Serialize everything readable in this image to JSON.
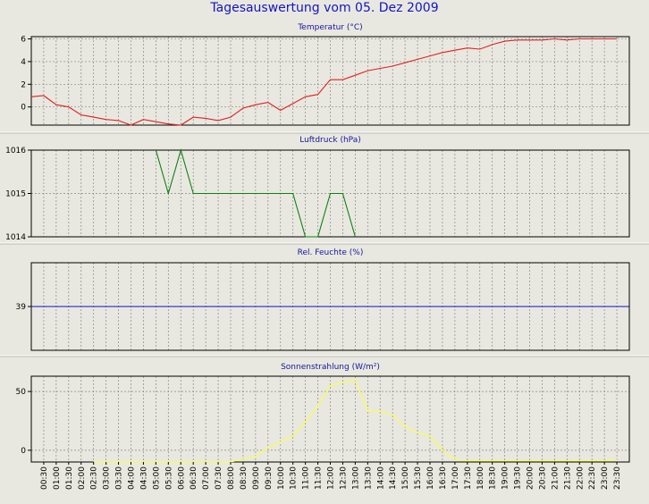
{
  "page": {
    "title": "Tagesauswertung vom 05. Dez 2009"
  },
  "chart_data": [
    {
      "type": "line",
      "title": "Temperatur (°C)",
      "color": "#e02020",
      "ylim": [
        -1.6,
        6.2
      ],
      "yticks": [
        0,
        2,
        4,
        6
      ],
      "x": [
        "00:00",
        "00:30",
        "01:00",
        "01:30",
        "02:00",
        "02:30",
        "03:00",
        "03:30",
        "04:00",
        "04:30",
        "05:00",
        "05:30",
        "06:00",
        "06:30",
        "07:00",
        "07:30",
        "08:00",
        "08:30",
        "09:00",
        "09:30",
        "10:00",
        "10:30",
        "11:00",
        "11:30",
        "12:00",
        "12:30",
        "13:00",
        "13:30",
        "14:00",
        "14:30",
        "15:00",
        "15:30",
        "16:00",
        "16:30",
        "17:00",
        "17:30",
        "18:00",
        "18:30",
        "19:00",
        "19:30",
        "20:00",
        "20:30",
        "21:00",
        "21:30",
        "22:00",
        "22:30",
        "23:00",
        "23:30"
      ],
      "series": [
        {
          "values": [
            0.9,
            1.0,
            0.2,
            0.0,
            -0.7,
            -0.9,
            -1.1,
            -1.2,
            -1.6,
            -1.1,
            -1.3,
            -1.5,
            -1.6,
            -0.9,
            -1.0,
            -1.2,
            -0.9,
            -0.1,
            0.2,
            0.4,
            -0.3,
            0.3,
            0.9,
            1.1,
            2.4,
            2.4,
            2.8,
            3.2,
            3.4,
            3.6,
            3.9,
            4.2,
            4.5,
            4.8,
            5.0,
            5.2,
            5.1,
            5.5,
            5.8,
            5.9,
            5.9,
            5.9,
            6.0,
            5.9,
            6.0,
            6.0,
            6.0,
            6.0
          ]
        }
      ]
    },
    {
      "type": "line",
      "title": "Luftdruck (hPa)",
      "color": "#108010",
      "ylim": [
        1014,
        1016
      ],
      "yticks": [
        1014,
        1015,
        1016
      ],
      "x": [
        "05:00",
        "05:30",
        "06:00",
        "06:30",
        "07:00",
        "07:30",
        "08:00",
        "08:30",
        "09:00",
        "09:30",
        "10:00",
        "10:30",
        "11:00",
        "11:30",
        "12:00",
        "12:30",
        "13:00"
      ],
      "series": [
        {
          "values": [
            1016,
            1015,
            1016,
            1015,
            1015,
            1015,
            1015,
            1015,
            1015,
            1015,
            1015,
            1015,
            1014,
            1014,
            1015,
            1015,
            1014
          ]
        }
      ]
    },
    {
      "type": "line",
      "title": "Rel. Feuchte (%)",
      "color": "#1010c0",
      "ylim": [
        36,
        42
      ],
      "yticks": [
        39
      ],
      "x": [
        "00:00",
        "23:59"
      ],
      "series": [
        {
          "values": [
            39,
            39
          ]
        }
      ]
    },
    {
      "type": "line",
      "title": "Sonnenstrahlung (W/m²)",
      "color": "#ffff40",
      "ylim": [
        -10,
        63
      ],
      "yticks": [
        0,
        50
      ],
      "x": [
        "02:30",
        "03:00",
        "03:30",
        "04:00",
        "04:30",
        "05:00",
        "05:30",
        "06:00",
        "06:30",
        "07:00",
        "07:30",
        "08:00",
        "08:30",
        "09:00",
        "09:30",
        "10:00",
        "10:30",
        "11:00",
        "11:30",
        "12:00",
        "12:30",
        "13:00",
        "13:30",
        "14:00",
        "14:30",
        "15:00",
        "15:30",
        "16:00",
        "16:30",
        "17:00",
        "17:30",
        "18:00",
        "18:30",
        "19:00",
        "19:30",
        "20:00",
        "20:30",
        "21:00",
        "21:30",
        "22:00",
        "22:30",
        "23:00",
        "23:30"
      ],
      "series": [
        {
          "values": [
            -10,
            -10,
            -10,
            -10,
            -10,
            -10,
            -10,
            -10,
            -10,
            -10,
            -10,
            -10,
            -8,
            -5,
            2,
            7,
            12,
            24,
            38,
            55,
            58,
            60,
            34,
            33,
            30,
            20,
            15,
            12,
            0,
            -8,
            -9,
            -9,
            -9,
            -9,
            -9,
            -9,
            -9,
            -9,
            -9,
            -9,
            -9,
            -9,
            -8
          ]
        }
      ]
    }
  ],
  "x_axis": {
    "labels": [
      "00:30",
      "01:00",
      "01:30",
      "02:00",
      "02:30",
      "03:00",
      "03:30",
      "04:00",
      "04:30",
      "05:00",
      "05:30",
      "06:00",
      "06:30",
      "07:00",
      "07:30",
      "08:00",
      "08:30",
      "09:00",
      "09:30",
      "10:00",
      "10:30",
      "11:00",
      "11:30",
      "12:00",
      "12:30",
      "13:00",
      "13:30",
      "14:00",
      "14:30",
      "15:00",
      "15:30",
      "16:00",
      "16:30",
      "17:00",
      "17:30",
      "18:00",
      "18:30",
      "19:00",
      "19:30",
      "20:00",
      "20:30",
      "21:00",
      "21:30",
      "22:00",
      "22:30",
      "23:00",
      "23:30"
    ]
  },
  "colors": {
    "background": "#e8e8e0",
    "grid": "#888888",
    "title": "#1515a0"
  }
}
